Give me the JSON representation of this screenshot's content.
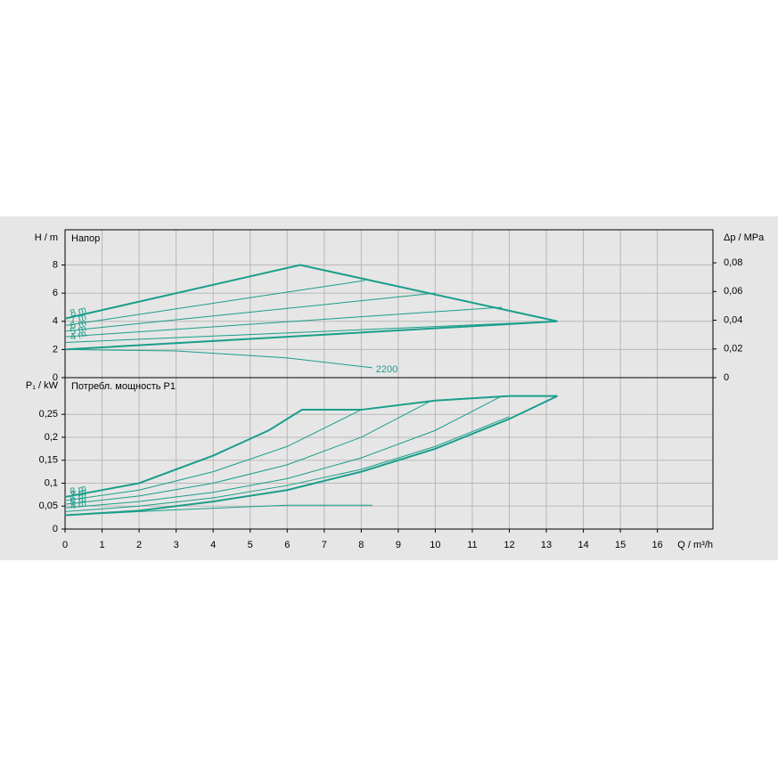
{
  "chart_data": [
    {
      "type": "line",
      "ylabel": "H / m",
      "title": "Напор",
      "y2label": "Δp / MPa",
      "xlim": [
        0,
        17.5
      ],
      "ylim": [
        0,
        10.5
      ],
      "yticks": [
        0,
        2,
        4,
        6,
        8
      ],
      "y2lim": [
        0,
        0.103
      ],
      "y2ticks": [
        0,
        {
          "value": 0.02,
          "label": "0,02"
        },
        {
          "value": 0.04,
          "label": "0,04"
        },
        {
          "value": 0.06,
          "label": "0,06"
        },
        {
          "value": 0.08,
          "label": "0,08"
        }
      ],
      "grid": true,
      "color": "#1a9e8a",
      "series": [
        {
          "name": "8 m",
          "width": 2,
          "x": [
            0,
            6.35,
            13.3
          ],
          "values": [
            4.2,
            8.0,
            4.0
          ]
        },
        {
          "name": "7 m",
          "width": 1,
          "x": [
            0,
            8.1
          ],
          "values": [
            3.7,
            6.9
          ]
        },
        {
          "name": "6 m",
          "width": 1,
          "x": [
            0,
            10.0
          ],
          "values": [
            3.3,
            6.0
          ]
        },
        {
          "name": "5 m",
          "width": 1,
          "x": [
            0,
            11.8
          ],
          "values": [
            2.9,
            5.0
          ]
        },
        {
          "name": "4 m",
          "width": 1,
          "x": [
            0,
            13.3
          ],
          "values": [
            2.5,
            4.0
          ]
        },
        {
          "width": 2,
          "x": [
            0,
            13.3
          ],
          "values": [
            2.0,
            4.0
          ]
        },
        {
          "name": "2200",
          "width": 1,
          "end_label": true,
          "x": [
            0,
            3,
            6,
            8.3
          ],
          "values": [
            2.0,
            1.9,
            1.4,
            0.7
          ]
        }
      ]
    },
    {
      "type": "line",
      "ylabel": "P₁ / kW",
      "title": "Потребл. мощность P1",
      "xlabel": "Q / m³/h",
      "xlim": [
        0,
        17.5
      ],
      "xticks": [
        0,
        1,
        2,
        3,
        4,
        5,
        6,
        7,
        8,
        9,
        10,
        11,
        12,
        13,
        14,
        15,
        16
      ],
      "ylim": [
        0,
        0.33
      ],
      "yticks": [
        0,
        {
          "value": 0.05,
          "label": "0,05"
        },
        {
          "value": 0.1,
          "label": "0,1"
        },
        {
          "value": 0.15,
          "label": "0,15"
        },
        {
          "value": 0.2,
          "label": "0,2"
        },
        {
          "value": 0.25,
          "label": "0,25"
        }
      ],
      "grid": true,
      "color": "#1a9e8a",
      "series": [
        {
          "name": "8 m",
          "width": 2,
          "x": [
            0,
            2,
            4,
            5.5,
            6.4,
            8,
            10,
            12,
            13.3
          ],
          "values": [
            0.07,
            0.1,
            0.16,
            0.215,
            0.26,
            0.26,
            0.28,
            0.29,
            0.29
          ]
        },
        {
          "name": "7 m",
          "width": 1,
          "x": [
            0,
            2,
            4,
            6,
            8
          ],
          "values": [
            0.062,
            0.085,
            0.125,
            0.18,
            0.26
          ]
        },
        {
          "name": "6 m",
          "width": 1,
          "x": [
            0,
            2,
            4,
            6,
            8,
            9.9
          ],
          "values": [
            0.054,
            0.072,
            0.1,
            0.14,
            0.2,
            0.28
          ]
        },
        {
          "name": "5 m",
          "width": 1,
          "x": [
            0,
            2,
            4,
            6,
            8,
            10,
            11.8
          ],
          "values": [
            0.046,
            0.06,
            0.08,
            0.11,
            0.155,
            0.215,
            0.29
          ]
        },
        {
          "name": "4 m",
          "width": 1,
          "x": [
            0,
            2,
            4,
            6,
            8,
            10,
            12
          ],
          "values": [
            0.038,
            0.05,
            0.068,
            0.095,
            0.13,
            0.18,
            0.245
          ]
        },
        {
          "width": 2,
          "x": [
            0,
            2,
            4,
            6,
            8,
            10,
            12,
            13.3
          ],
          "values": [
            0.03,
            0.04,
            0.06,
            0.085,
            0.125,
            0.175,
            0.24,
            0.29
          ]
        },
        {
          "width": 1,
          "x": [
            0,
            3,
            6,
            8.3
          ],
          "values": [
            0.03,
            0.042,
            0.052,
            0.052
          ]
        }
      ]
    }
  ]
}
